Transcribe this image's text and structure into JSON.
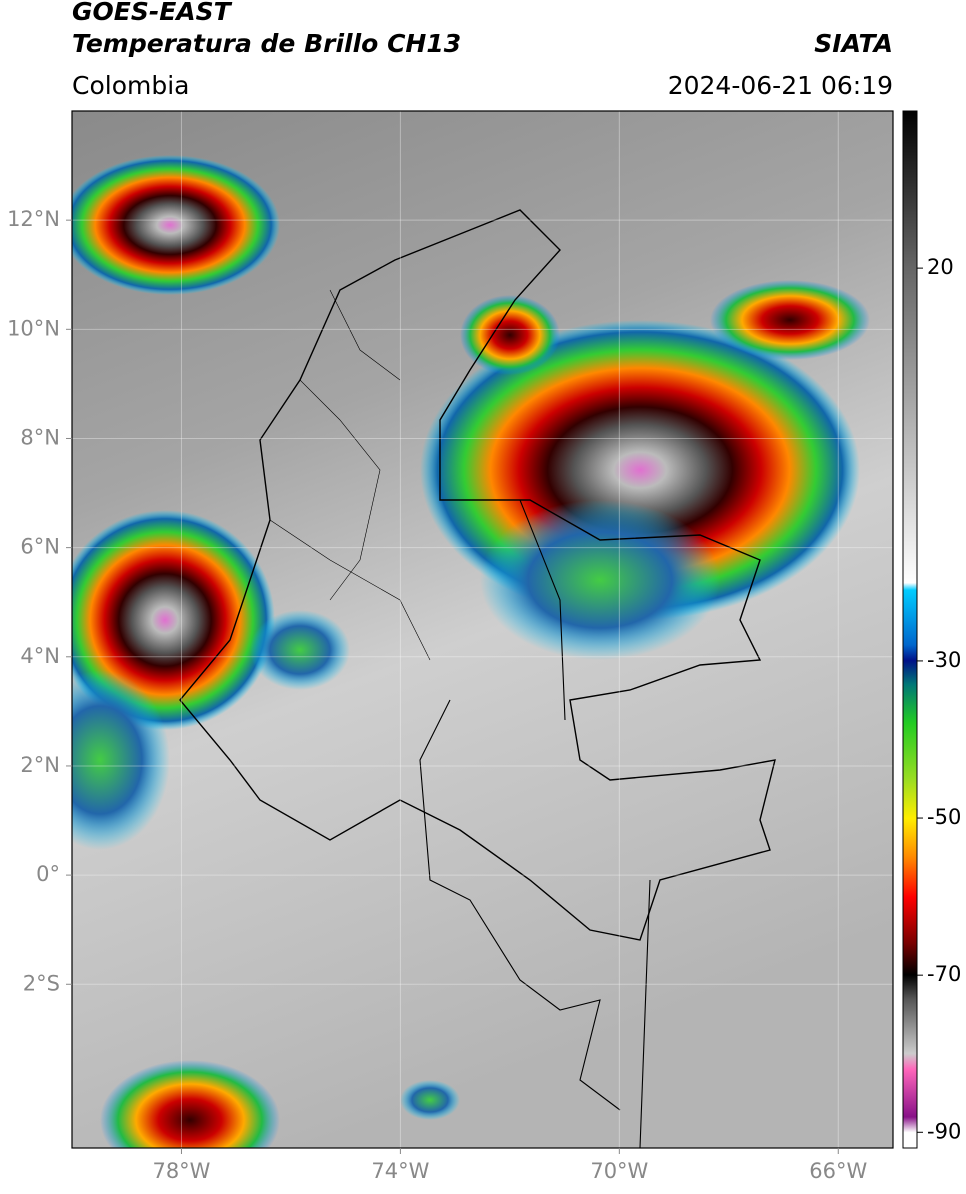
{
  "header": {
    "title": "GOES-EAST",
    "subtitle": "Temperatura de Brillo CH13",
    "region": "Colombia",
    "source": "SIATA",
    "datetime": "2024-06-21 06:19"
  },
  "map": {
    "xlim": [
      -80,
      -65
    ],
    "ylim": [
      -5,
      14
    ],
    "grid": true,
    "xticks": [
      {
        "value": -78,
        "label": "78°W"
      },
      {
        "value": -74,
        "label": "74°W"
      },
      {
        "value": -70,
        "label": "70°W"
      },
      {
        "value": -66,
        "label": "66°W"
      }
    ],
    "yticks": [
      {
        "value": 12,
        "label": "12°N"
      },
      {
        "value": 10,
        "label": "10°N"
      },
      {
        "value": 8,
        "label": "8°N"
      },
      {
        "value": 6,
        "label": "6°N"
      },
      {
        "value": 4,
        "label": "4°N"
      },
      {
        "value": 2,
        "label": "2°N"
      },
      {
        "value": 0,
        "label": "0°"
      },
      {
        "value": -2,
        "label": "2°S"
      }
    ]
  },
  "colorbar": {
    "lim": [
      -92,
      40
    ],
    "ticks": [
      20,
      -30,
      -50,
      -70,
      -90
    ]
  }
}
